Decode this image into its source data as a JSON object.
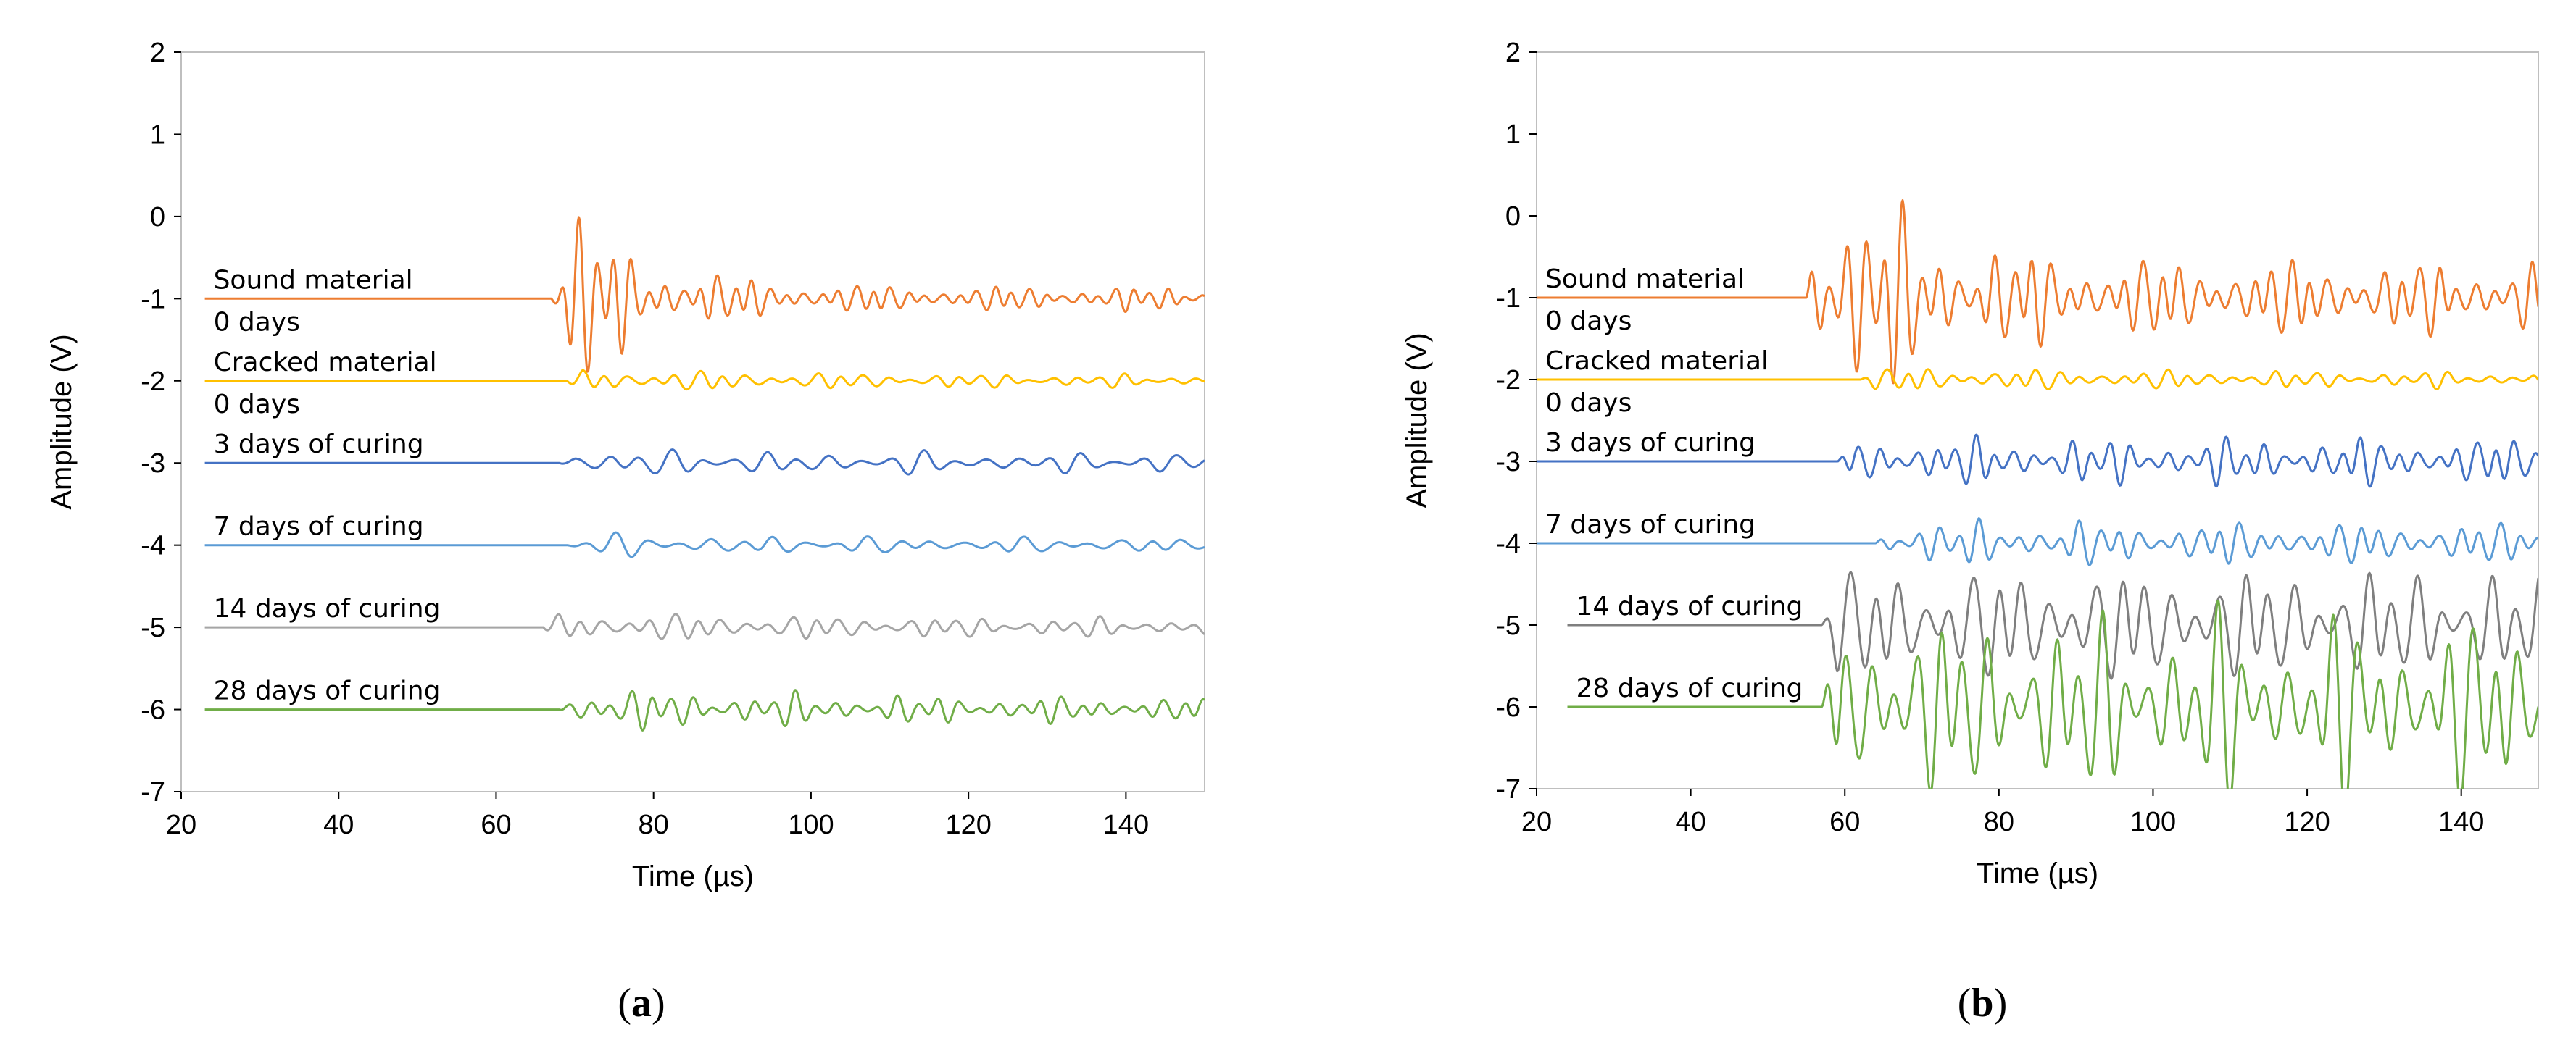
{
  "chart_data": [
    {
      "type": "line",
      "panel_label": "a",
      "caption_open": "(",
      "caption_close": ")",
      "xlabel": "Time (µs)",
      "ylabel": "Amplitude (V)",
      "xlim": [
        20,
        150
      ],
      "ylim": [
        -7,
        2
      ],
      "xticks": [
        20,
        40,
        60,
        80,
        100,
        120,
        140
      ],
      "yticks": [
        2,
        1,
        0,
        -1,
        -2,
        -3,
        -4,
        -5,
        -6,
        -7
      ],
      "grid": false,
      "series": [
        {
          "name": "Sound material",
          "label_lines": [
            "Sound material",
            "0 days"
          ],
          "baseline": -1,
          "color": "#ED7D31",
          "onset": 67,
          "line_start": 23,
          "amp": 1.75,
          "tail": 0.18,
          "period": 2.2,
          "decay": 10
        },
        {
          "name": "Cracked material 0 days",
          "label_lines": [
            "Cracked material",
            "0 days"
          ],
          "baseline": -2,
          "color": "#FFC000",
          "onset": 69,
          "line_start": 23,
          "amp": 0.2,
          "tail": 0.09,
          "period": 3.0,
          "decay": 30
        },
        {
          "name": "3 days of curing",
          "label_lines": [
            "3 days of curing"
          ],
          "baseline": -3,
          "color": "#4472C4",
          "onset": 68,
          "line_start": 23,
          "amp": 0.22,
          "tail": 0.14,
          "period": 4.0,
          "decay": 40
        },
        {
          "name": "7 days of curing",
          "label_lines": [
            "7 days of curing"
          ],
          "baseline": -4,
          "color": "#5B9BD5",
          "onset": 69,
          "line_start": 23,
          "amp": 0.18,
          "tail": 0.1,
          "period": 4.0,
          "decay": 40
        },
        {
          "name": "14 days of curing",
          "label_lines": [
            "14 days of curing"
          ],
          "baseline": -5,
          "color": "#A5A5A5",
          "onset": 66,
          "line_start": 23,
          "amp": 0.25,
          "tail": 0.13,
          "period": 3.0,
          "decay": 40
        },
        {
          "name": "28 days of curing",
          "label_lines": [
            "28 days of curing"
          ],
          "baseline": -6,
          "color": "#70AD47",
          "onset": 68,
          "line_start": 23,
          "amp": 0.35,
          "tail": 0.15,
          "period": 2.6,
          "decay": 40
        }
      ]
    },
    {
      "type": "line",
      "panel_label": "b",
      "caption_open": "(",
      "caption_close": ")",
      "xlabel": "Time (µs)",
      "ylabel": "Amplitude (V)",
      "xlim": [
        20,
        150
      ],
      "ylim": [
        -7,
        2
      ],
      "xticks": [
        20,
        40,
        60,
        80,
        100,
        120,
        140
      ],
      "yticks": [
        2,
        1,
        0,
        -1,
        -2,
        -3,
        -4,
        -5,
        -6,
        -7
      ],
      "grid": false,
      "series": [
        {
          "name": "Sound material",
          "label_lines": [
            "Sound material",
            "0 days"
          ],
          "baseline": -1,
          "color": "#ED7D31",
          "onset": 55,
          "line_start": 20,
          "amp": 2.5,
          "tail": 0.55,
          "period": 2.4,
          "decay": 12
        },
        {
          "name": "Cracked material 0 days",
          "label_lines": [
            "Cracked material",
            "0 days"
          ],
          "baseline": -2,
          "color": "#FFC000",
          "onset": 62,
          "line_start": 20,
          "amp": 0.2,
          "tail": 0.12,
          "period": 2.8,
          "decay": 30
        },
        {
          "name": "3 days of curing",
          "label_lines": [
            "3 days of curing"
          ],
          "baseline": -3,
          "color": "#4472C4",
          "onset": 59,
          "line_start": 20,
          "amp": 0.35,
          "tail": 0.35,
          "period": 2.5,
          "decay": 40
        },
        {
          "name": "7 days of curing",
          "label_lines": [
            "7 days of curing"
          ],
          "baseline": -4,
          "color": "#5B9BD5",
          "onset": 64,
          "line_start": 20,
          "amp": 0.35,
          "tail": 0.3,
          "period": 2.6,
          "decay": 40
        },
        {
          "name": "14 days of curing",
          "label_lines": [
            "14 days of curing"
          ],
          "baseline": -5,
          "color": "#7F7F7F",
          "onset": 57,
          "line_start": 24,
          "amp": 0.9,
          "tail": 0.9,
          "period": 3.2,
          "decay": 60
        },
        {
          "name": "28 days of curing",
          "label_lines": [
            "28 days of curing"
          ],
          "baseline": -6,
          "color": "#70AD47",
          "onset": 57,
          "line_start": 24,
          "amp": 1.4,
          "tail": 1.4,
          "period": 3.0,
          "decay": 60
        }
      ]
    }
  ]
}
